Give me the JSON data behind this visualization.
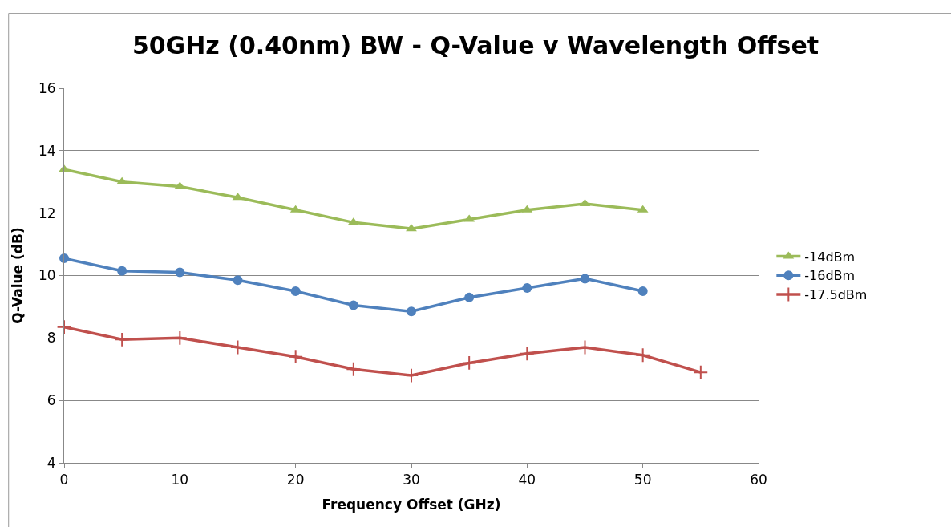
{
  "chart_data": {
    "type": "line",
    "title": "50GHz (0.40nm) BW - Q-Value v Wavelength Offset",
    "xlabel": "Frequency Offset (GHz)",
    "ylabel": "Q-Value (dB)",
    "x": [
      0,
      5,
      10,
      15,
      20,
      25,
      30,
      35,
      40,
      45,
      50,
      55
    ],
    "series": [
      {
        "name": "-14dBm",
        "color": "#9bbb59",
        "marker": "triangle",
        "values": [
          13.4,
          13.0,
          12.85,
          12.5,
          12.1,
          11.7,
          11.5,
          11.8,
          12.1,
          12.3,
          12.1,
          null
        ]
      },
      {
        "name": "-16dBm",
        "color": "#4f81bd",
        "marker": "circle",
        "values": [
          10.55,
          10.15,
          10.1,
          9.85,
          9.5,
          9.05,
          8.85,
          9.3,
          9.6,
          9.9,
          9.5,
          null
        ]
      },
      {
        "name": "-17.5dBm",
        "color": "#c0504d",
        "marker": "cross",
        "values": [
          8.35,
          7.95,
          8.0,
          7.7,
          7.4,
          7.0,
          6.8,
          7.2,
          7.5,
          7.7,
          7.45,
          6.9
        ]
      }
    ],
    "xlim": [
      0,
      60
    ],
    "xticks": [
      0,
      10,
      20,
      30,
      40,
      50,
      60
    ],
    "ylim": [
      4,
      16
    ],
    "yticks": [
      4,
      6,
      8,
      10,
      12,
      14,
      16
    ],
    "grid": "y",
    "legend": "right"
  }
}
